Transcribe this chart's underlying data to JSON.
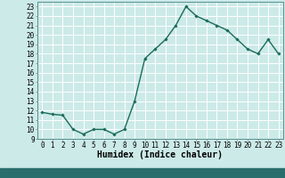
{
  "x": [
    0,
    1,
    2,
    3,
    4,
    5,
    6,
    7,
    8,
    9,
    10,
    11,
    12,
    13,
    14,
    15,
    16,
    17,
    18,
    19,
    20,
    21,
    22,
    23
  ],
  "y": [
    11.8,
    11.6,
    11.5,
    10.0,
    9.5,
    10.0,
    10.0,
    9.5,
    10.0,
    13.0,
    17.5,
    18.5,
    19.5,
    21.0,
    23.0,
    22.0,
    21.5,
    21.0,
    20.5,
    19.5,
    18.5,
    18.0,
    19.5,
    18.0
  ],
  "line_color": "#1a6b5a",
  "marker": "D",
  "marker_size": 1.8,
  "line_width": 1.0,
  "bg_color": "#cceae8",
  "grid_color": "#ffffff",
  "xlabel": "Humidex (Indice chaleur)",
  "xlim": [
    -0.5,
    23.5
  ],
  "ylim": [
    9,
    23.5
  ],
  "yticks": [
    9,
    10,
    11,
    12,
    13,
    14,
    15,
    16,
    17,
    18,
    19,
    20,
    21,
    22,
    23
  ],
  "xticks": [
    0,
    1,
    2,
    3,
    4,
    5,
    6,
    7,
    8,
    9,
    10,
    11,
    12,
    13,
    14,
    15,
    16,
    17,
    18,
    19,
    20,
    21,
    22,
    23
  ],
  "tick_labelsize": 5.5,
  "xlabel_fontsize": 7,
  "spine_color": "#5a9090",
  "bottom_strip_color": "#2a6e6e"
}
